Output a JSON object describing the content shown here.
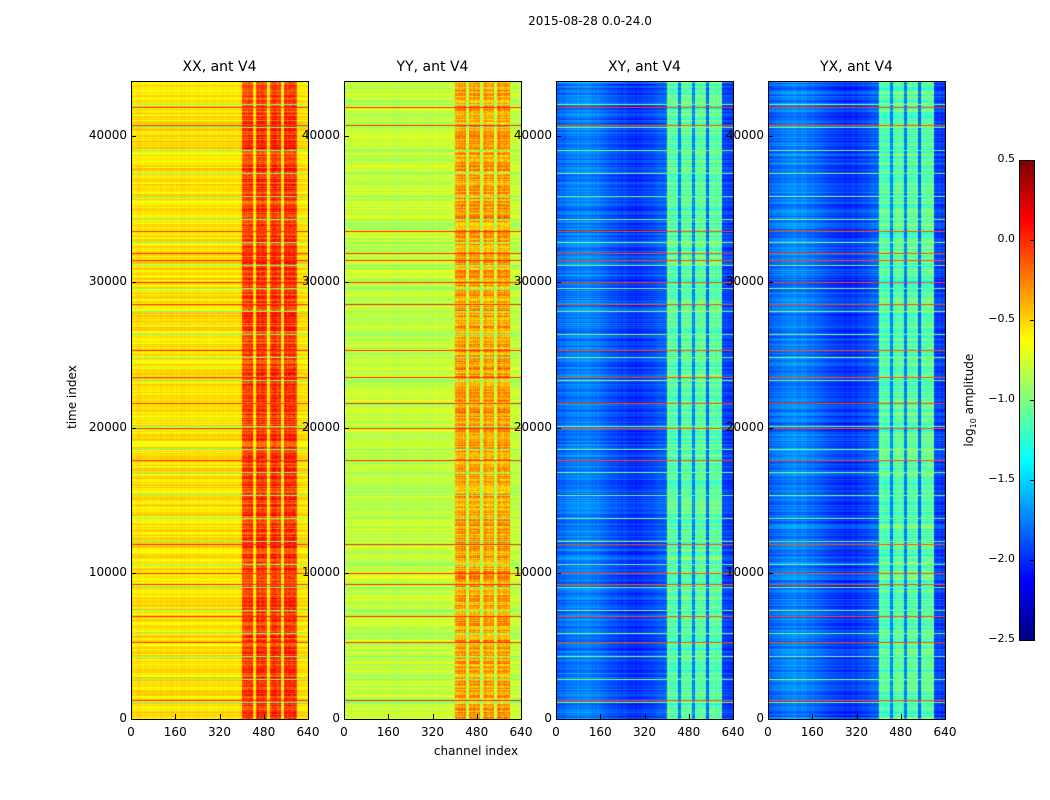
{
  "suptitle": "2015-08-28 0.0-24.0",
  "chart_data": {
    "type": "heatmap",
    "title": "2015-08-28 0.0-24.0",
    "xlabel": "channel index",
    "ylabel": "time index",
    "xlim": [
      0,
      640
    ],
    "ylim": [
      0,
      43800
    ],
    "xticks": [
      "0",
      "160",
      "320",
      "480",
      "640"
    ],
    "xtick_values": [
      0,
      160,
      320,
      480,
      640
    ],
    "yticks": [
      "0",
      "10000",
      "20000",
      "30000",
      "40000"
    ],
    "ytick_values": [
      0,
      10000,
      20000,
      30000,
      40000
    ],
    "colormap": "jet",
    "colorbar": {
      "label": "log10 amplitude",
      "label_main": "log",
      "label_sub": "10",
      "label_rest": " amplitude",
      "range": [
        -2.5,
        0.5
      ],
      "ticks": [
        "0.5",
        "0.0",
        "−0.5",
        "−1.0",
        "−1.5",
        "−2.0",
        "−2.5"
      ],
      "tick_values": [
        0.5,
        0.0,
        -0.5,
        -1.0,
        -1.5,
        -2.0,
        -2.5
      ]
    },
    "bright_channel_range": [
      400,
      600
    ],
    "bright_time_rows": [
      1300,
      5300,
      7100,
      9300,
      10000,
      12000,
      17800,
      20000,
      21700,
      23500,
      25300,
      28500,
      30000,
      31500,
      32000,
      33500,
      40800,
      42000
    ],
    "panels": [
      {
        "title": "XX, ant V4",
        "baseline": -0.55,
        "bright_band": -0.05,
        "row_level": 0.0
      },
      {
        "title": "YY, ant V4",
        "baseline": -0.8,
        "bright_band": -0.35,
        "row_level": 0.0
      },
      {
        "title": "XY, ant V4",
        "baseline": -1.85,
        "bright_band": -1.1,
        "row_level": -0.1
      },
      {
        "title": "YX, ant V4",
        "baseline": -1.85,
        "bright_band": -1.1,
        "row_level": -0.1
      }
    ]
  }
}
